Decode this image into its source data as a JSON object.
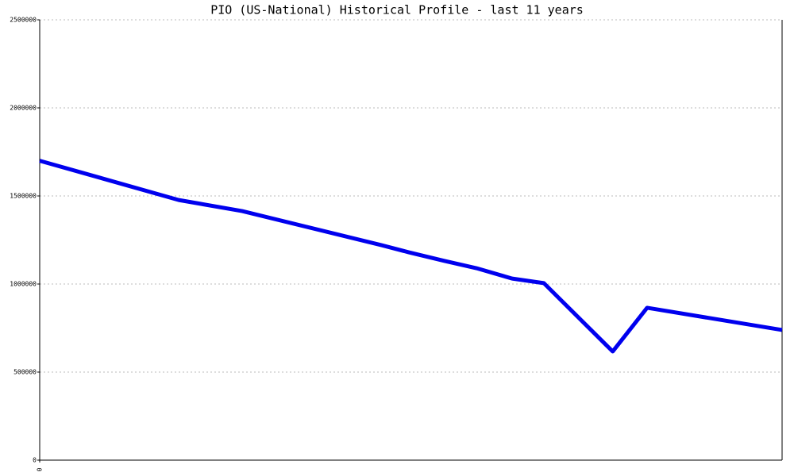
{
  "chart_data": {
    "type": "line",
    "title": "PIO (US-National) Historical Profile - last 11 years",
    "x": [
      0,
      2.06,
      3,
      5.06,
      5.47,
      6,
      6.47,
      7,
      7.47,
      8.49,
      9,
      11
    ],
    "series": [
      {
        "color": "#0000ee",
        "values": [
          1700000,
          1477000,
          1414000,
          1221000,
          1180000,
          1131000,
          1090000,
          1031000,
          1005000,
          617000,
          865000,
          739000
        ]
      }
    ],
    "xlim": [
      0,
      11
    ],
    "xticks": [
      0
    ],
    "ylim": [
      0,
      2500000
    ],
    "yticks": [
      0,
      500000,
      1000000,
      1500000,
      2000000,
      2500000
    ],
    "grid": true
  }
}
